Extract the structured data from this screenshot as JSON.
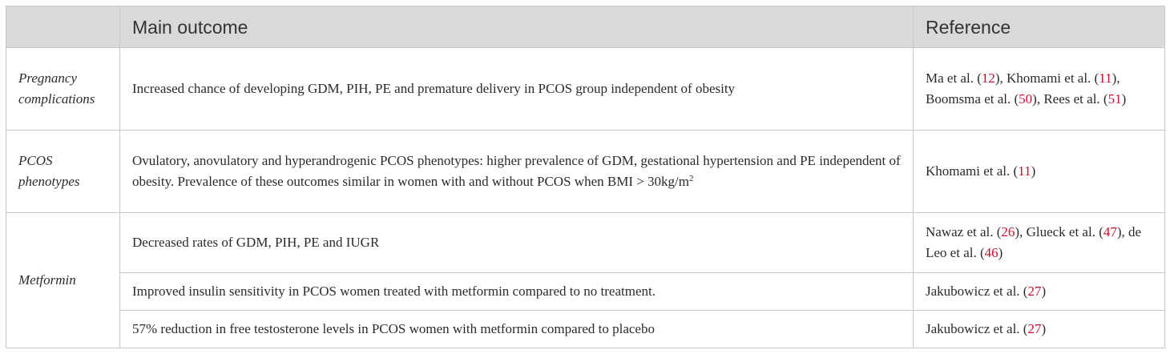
{
  "headers": {
    "col1": "",
    "col2": "Main outcome",
    "col3": "Reference"
  },
  "rows": [
    {
      "category": "Pregnancy complications",
      "outcome": "Increased chance of developing GDM, PIH, PE and premature delivery in PCOS group independent of obesity",
      "refs": [
        {
          "author": "Ma et al. (",
          "num": "12",
          "tail": "), "
        },
        {
          "author": "Khomami et al. (",
          "num": "11",
          "tail": "), "
        },
        {
          "author": "Boomsma et al. (",
          "num": "50",
          "tail": "), "
        },
        {
          "author": "Rees et al. (",
          "num": "51",
          "tail": ")"
        }
      ]
    },
    {
      "category": "PCOS phenotypes",
      "outcome_main": "Ovulatory, anovulatory and hyperandrogenic PCOS phenotypes: higher prevalence of GDM, gestational hypertension and PE independent of obesity. Prevalence of these outcomes similar in women with and without PCOS when BMI > 30kg/m",
      "outcome_sup": "2",
      "refs": [
        {
          "author": "Khomami et al. (",
          "num": "11",
          "tail": ")"
        }
      ]
    },
    {
      "category": "Metformin",
      "outcome": "Decreased rates of GDM, PIH, PE and IUGR",
      "refs": [
        {
          "author": "Nawaz et al. (",
          "num": "26",
          "tail": "), "
        },
        {
          "author": "Glueck et al. (",
          "num": "47",
          "tail": "), "
        },
        {
          "author": "de Leo et al. (",
          "num": "46",
          "tail": ")"
        }
      ]
    },
    {
      "outcome": "Improved insulin sensitivity in PCOS women treated with metformin compared to no treatment.",
      "refs": [
        {
          "author": "Jakubowicz et al. (",
          "num": "27",
          "tail": ")"
        }
      ]
    },
    {
      "outcome": "57% reduction in free testosterone levels in PCOS women with metformin compared to placebo",
      "refs": [
        {
          "author": "Jakubowicz et al. (",
          "num": "27",
          "tail": ")"
        }
      ]
    }
  ],
  "colors": {
    "header_bg": "#d9d9d9",
    "border": "#c8c8c8",
    "ref_link": "#c8102e",
    "text": "#2b2b2b"
  }
}
